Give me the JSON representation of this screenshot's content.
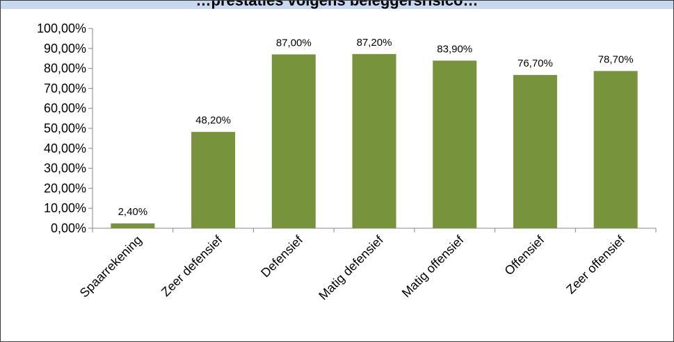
{
  "chart_data": {
    "type": "bar",
    "title": "…prestaties volgens beleggersrisico…",
    "categories": [
      "Spaarrekening",
      "Zeer defensief",
      "Defensief",
      "Matig defensief",
      "Matig offensief",
      "Offensief",
      "Zeer offensief"
    ],
    "values": [
      2.4,
      48.2,
      87.0,
      87.2,
      83.9,
      76.7,
      78.7
    ],
    "value_labels": [
      "2,40%",
      "48,20%",
      "87,00%",
      "87,20%",
      "83,90%",
      "76,70%",
      "78,70%"
    ],
    "y_ticks": [
      {
        "value": 0,
        "label": "0,00%"
      },
      {
        "value": 10,
        "label": "10,00%"
      },
      {
        "value": 20,
        "label": "20,00%"
      },
      {
        "value": 30,
        "label": "30,00%"
      },
      {
        "value": 40,
        "label": "40,00%"
      },
      {
        "value": 50,
        "label": "50,00%"
      },
      {
        "value": 60,
        "label": "60,00%"
      },
      {
        "value": 70,
        "label": "70,00%"
      },
      {
        "value": 80,
        "label": "80,00%"
      },
      {
        "value": 90,
        "label": "90,00%"
      },
      {
        "value": 100,
        "label": "100,00%"
      }
    ],
    "ylim": [
      0,
      100
    ],
    "xlabel": "",
    "ylabel": "",
    "grid": false,
    "legend": "none",
    "bar_color": "#77933c",
    "title_bar_color": "#c6d9f1"
  }
}
